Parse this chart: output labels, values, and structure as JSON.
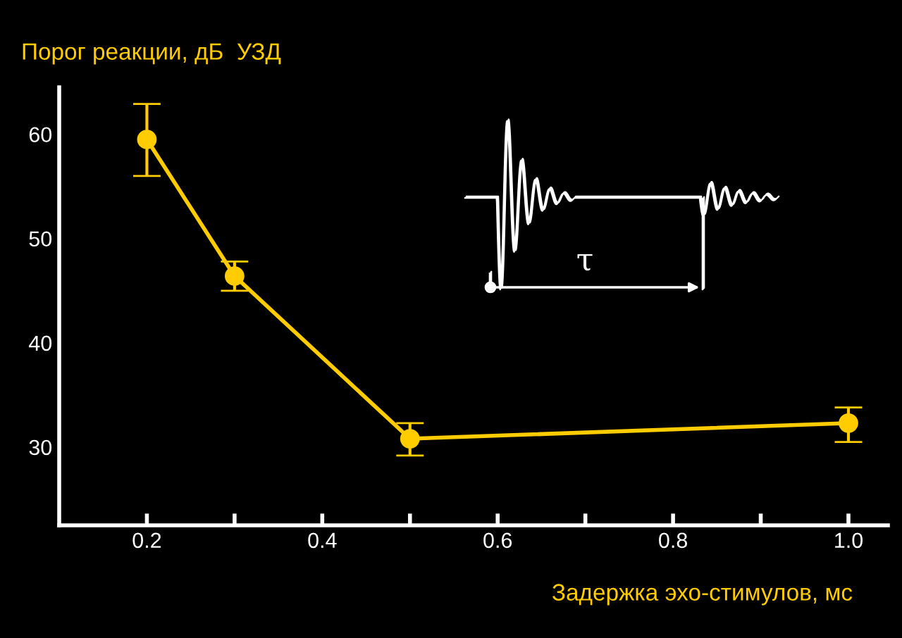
{
  "chart_data": {
    "type": "line",
    "ylabel": "Порог реакции, дБ  УЗД",
    "xlabel": "Задержка эхо-стимулов, мс",
    "x": [
      0.2,
      0.3,
      0.5,
      1.0
    ],
    "series": [
      {
        "color": "#ffcc00",
        "values": [
          59.5,
          46.4,
          30.8,
          32.3
        ],
        "errors": [
          [
            56.0,
            62.9
          ],
          [
            45.0,
            47.8
          ],
          [
            29.2,
            32.3
          ],
          [
            30.5,
            33.8
          ]
        ]
      }
    ],
    "marker": "circle",
    "line_style": "solid",
    "grid": false,
    "legend": false,
    "xlim": [
      0.1,
      1.045
    ],
    "ylim": [
      22.5,
      64.5
    ],
    "xticks": [
      0.2,
      {
        "value": 0.3,
        "label": null
      },
      0.4,
      {
        "value": 0.5,
        "label": null
      },
      0.6,
      {
        "value": 0.7,
        "label": null
      },
      0.8,
      {
        "value": 0.9,
        "label": null
      },
      {
        "value": 1.0,
        "label": "1.0"
      }
    ],
    "yticks": [
      30,
      40,
      50,
      60
    ],
    "annotations": [
      "τ"
    ]
  }
}
